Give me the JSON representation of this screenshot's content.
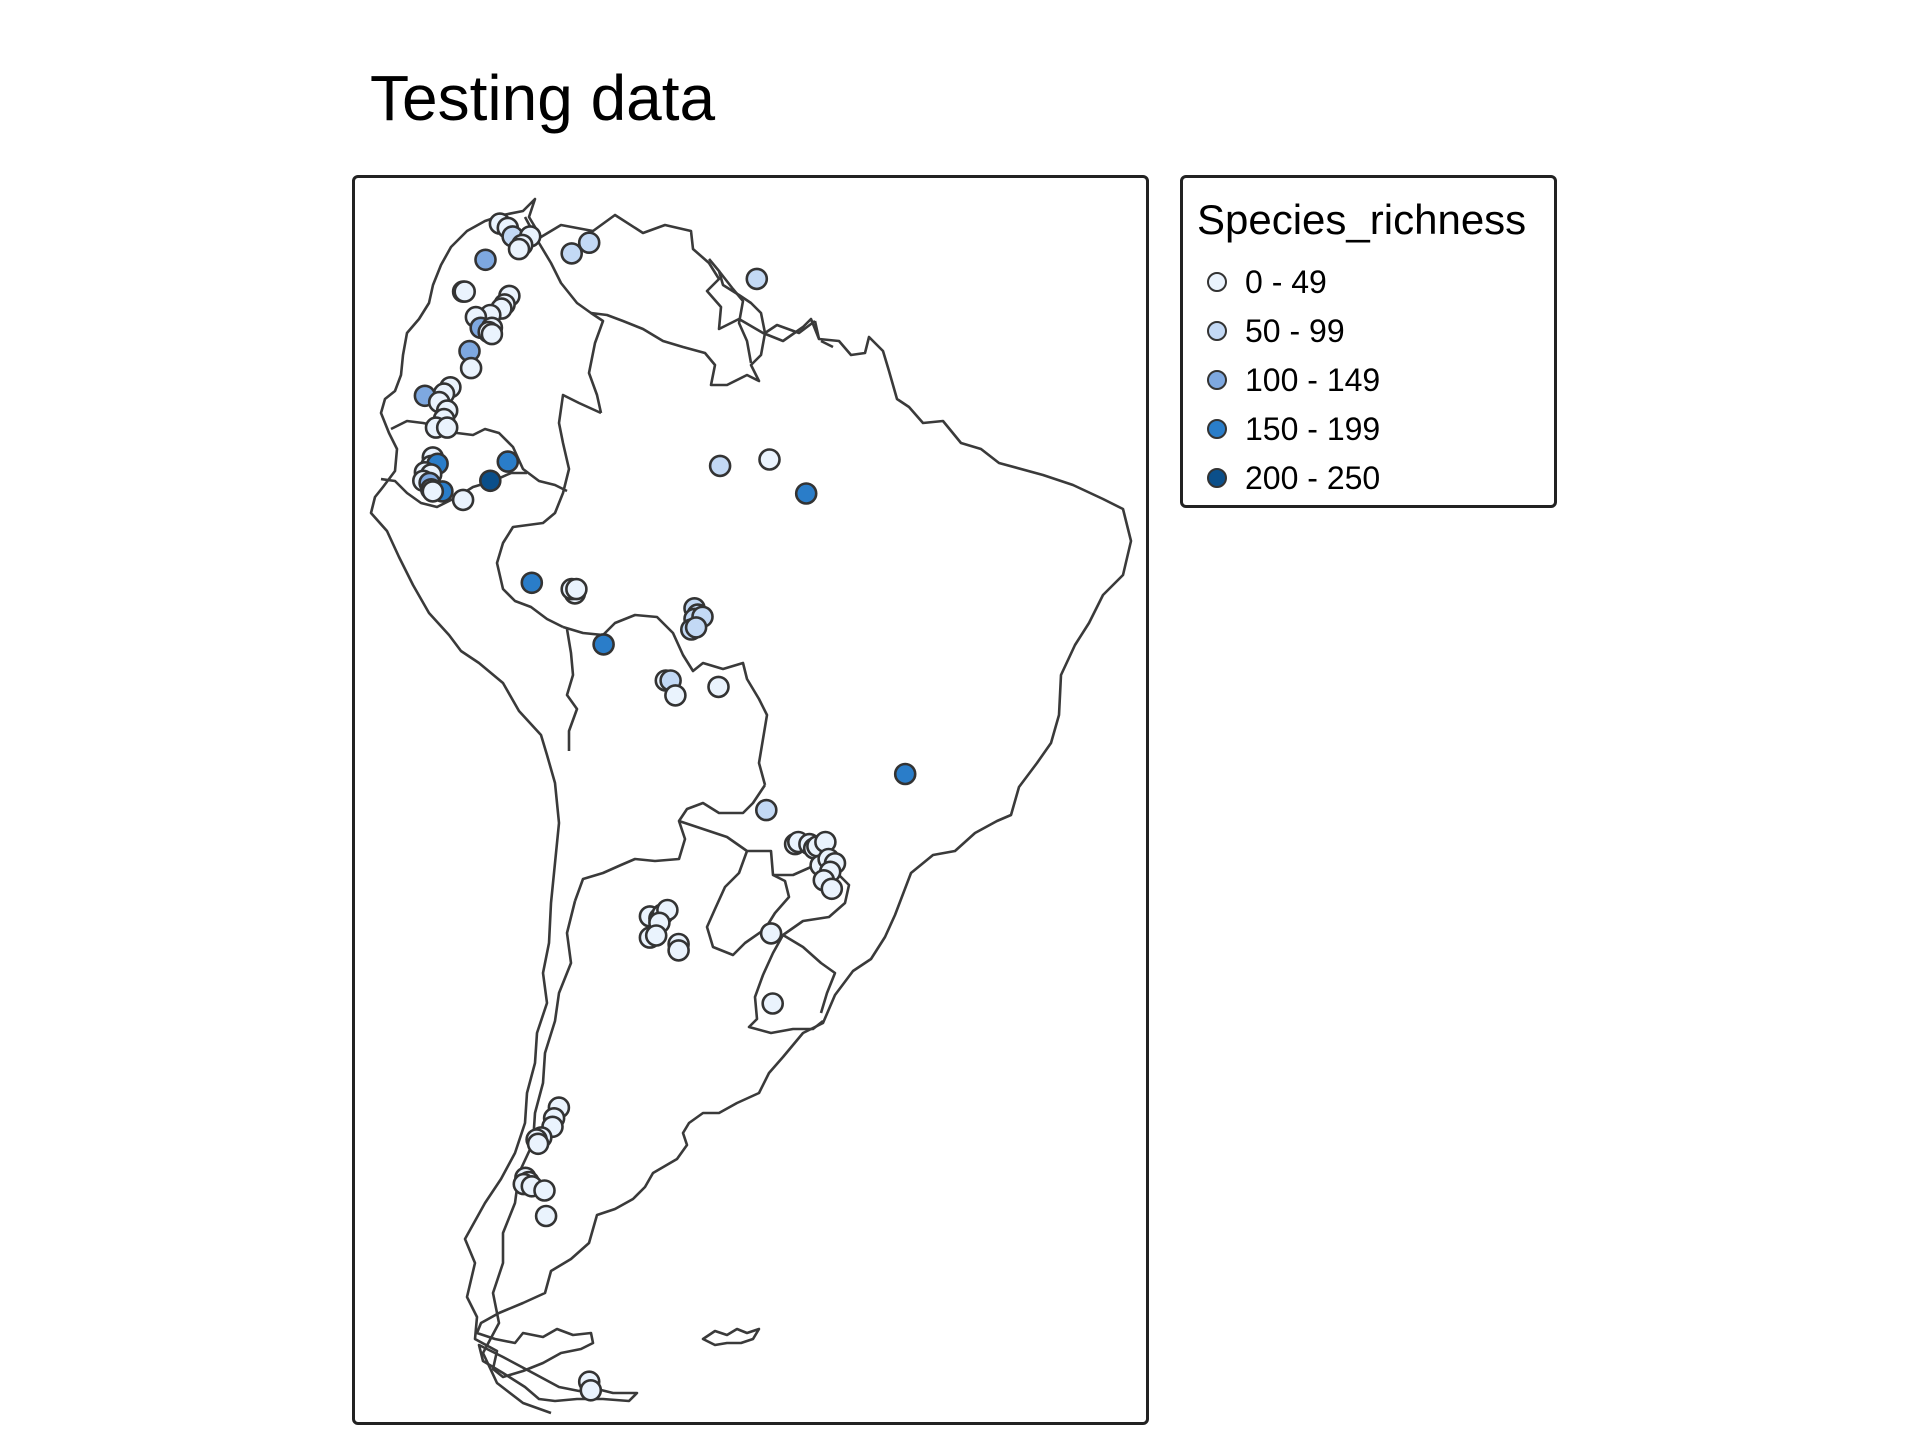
{
  "map": {
    "title": "Testing data",
    "legend": {
      "title": "Species_richness",
      "classes": [
        {
          "label": "0 - 49",
          "color": "#eaf3fd"
        },
        {
          "label": "50 - 99",
          "color": "#c3d9f5"
        },
        {
          "label": "100 - 149",
          "color": "#7ea8e0"
        },
        {
          "label": "150 - 199",
          "color": "#2a7dc9"
        },
        {
          "label": "200 - 250",
          "color": "#0b4f8a"
        }
      ]
    },
    "sites": [
      [
        -72.8,
        11.2,
        0
      ],
      [
        -72.3,
        11.0,
        0
      ],
      [
        -72.0,
        10.6,
        1
      ],
      [
        -70.9,
        10.6,
        0
      ],
      [
        -71.4,
        10.2,
        0
      ],
      [
        -71.6,
        10.0,
        0
      ],
      [
        -67.2,
        10.3,
        1
      ],
      [
        -68.3,
        9.8,
        1
      ],
      [
        -73.7,
        9.5,
        2
      ],
      [
        -75.1,
        8.0,
        3
      ],
      [
        -75.0,
        8.0,
        0
      ],
      [
        -72.2,
        7.8,
        0
      ],
      [
        -72.5,
        7.4,
        0
      ],
      [
        -72.7,
        7.2,
        0
      ],
      [
        -73.4,
        6.9,
        0
      ],
      [
        -74.3,
        6.8,
        0
      ],
      [
        -74.0,
        6.3,
        2
      ],
      [
        -73.3,
        6.3,
        0
      ],
      [
        -73.5,
        6.1,
        0
      ],
      [
        -73.3,
        6.0,
        0
      ],
      [
        -74.7,
        5.2,
        2
      ],
      [
        -74.6,
        4.4,
        0
      ],
      [
        -75.9,
        3.5,
        0
      ],
      [
        -76.3,
        3.2,
        0
      ],
      [
        -77.5,
        3.1,
        2
      ],
      [
        -76.6,
        2.8,
        0
      ],
      [
        -76.1,
        2.4,
        0
      ],
      [
        -76.3,
        2.0,
        0
      ],
      [
        -76.8,
        1.6,
        0
      ],
      [
        -76.1,
        1.6,
        0
      ],
      [
        -77.0,
        0.2,
        0
      ],
      [
        -77.1,
        -0.2,
        0
      ],
      [
        -76.7,
        -0.1,
        3
      ],
      [
        -77.5,
        -0.5,
        0
      ],
      [
        -77.1,
        -0.6,
        0
      ],
      [
        -77.6,
        -0.9,
        0
      ],
      [
        -77.2,
        -1.0,
        2
      ],
      [
        -77.1,
        -1.3,
        0
      ],
      [
        -76.4,
        -1.4,
        3
      ],
      [
        -77.0,
        -1.4,
        0
      ],
      [
        -75.1,
        -1.8,
        0
      ],
      [
        -72.3,
        0.0,
        3
      ],
      [
        -73.4,
        -0.9,
        4
      ],
      [
        -59.0,
        -0.2,
        1
      ],
      [
        -55.9,
        0.1,
        0
      ],
      [
        -53.6,
        -1.5,
        3
      ],
      [
        -56.7,
        8.6,
        1
      ],
      [
        -70.8,
        -5.7,
        3
      ],
      [
        -68.1,
        -6.2,
        0
      ],
      [
        -68.3,
        -6.0,
        0
      ],
      [
        -68.0,
        -6.0,
        0
      ],
      [
        -66.3,
        -8.6,
        3
      ],
      [
        -60.6,
        -6.9,
        1
      ],
      [
        -60.4,
        -7.2,
        1
      ],
      [
        -60.6,
        -7.4,
        1
      ],
      [
        -60.8,
        -7.9,
        1
      ],
      [
        -60.1,
        -7.3,
        1
      ],
      [
        -60.5,
        -7.8,
        1
      ],
      [
        -62.4,
        -10.3,
        0
      ],
      [
        -62.1,
        -10.3,
        1
      ],
      [
        -61.8,
        -11.0,
        0
      ],
      [
        -59.1,
        -10.6,
        0
      ],
      [
        -47.4,
        -14.7,
        3
      ],
      [
        -56.1,
        -16.4,
        1
      ],
      [
        -54.3,
        -18.0,
        0
      ],
      [
        -54.1,
        -17.9,
        0
      ],
      [
        -53.4,
        -18.0,
        0
      ],
      [
        -53.1,
        -18.2,
        0
      ],
      [
        -52.9,
        -18.1,
        0
      ],
      [
        -52.4,
        -17.9,
        0
      ],
      [
        -52.7,
        -19.0,
        0
      ],
      [
        -52.2,
        -18.7,
        0
      ],
      [
        -51.8,
        -18.9,
        0
      ],
      [
        -52.1,
        -19.3,
        0
      ],
      [
        -52.5,
        -19.7,
        0
      ],
      [
        -52.0,
        -20.1,
        0
      ],
      [
        -63.4,
        -21.4,
        0
      ],
      [
        -62.8,
        -21.5,
        0
      ],
      [
        -62.6,
        -21.3,
        0
      ],
      [
        -62.3,
        -21.1,
        0
      ],
      [
        -62.8,
        -21.7,
        0
      ],
      [
        -63.4,
        -22.4,
        0
      ],
      [
        -63.0,
        -22.3,
        0
      ],
      [
        -61.6,
        -22.7,
        0
      ],
      [
        -61.6,
        -23.0,
        0
      ],
      [
        -55.8,
        -22.2,
        0
      ],
      [
        -55.7,
        -25.5,
        0
      ],
      [
        -69.1,
        -30.4,
        0
      ],
      [
        -69.4,
        -30.9,
        0
      ],
      [
        -69.5,
        -31.3,
        0
      ],
      [
        -70.2,
        -31.8,
        0
      ],
      [
        -70.5,
        -31.9,
        0
      ],
      [
        -70.4,
        -32.1,
        0
      ],
      [
        -71.2,
        -33.7,
        0
      ],
      [
        -71.0,
        -33.9,
        0
      ],
      [
        -71.3,
        -34.0,
        0
      ],
      [
        -70.8,
        -34.1,
        0
      ],
      [
        -70.0,
        -34.3,
        0
      ],
      [
        -69.9,
        -35.5,
        0
      ],
      [
        -67.2,
        -43.3,
        0
      ],
      [
        -67.1,
        -43.7,
        0
      ]
    ]
  }
}
